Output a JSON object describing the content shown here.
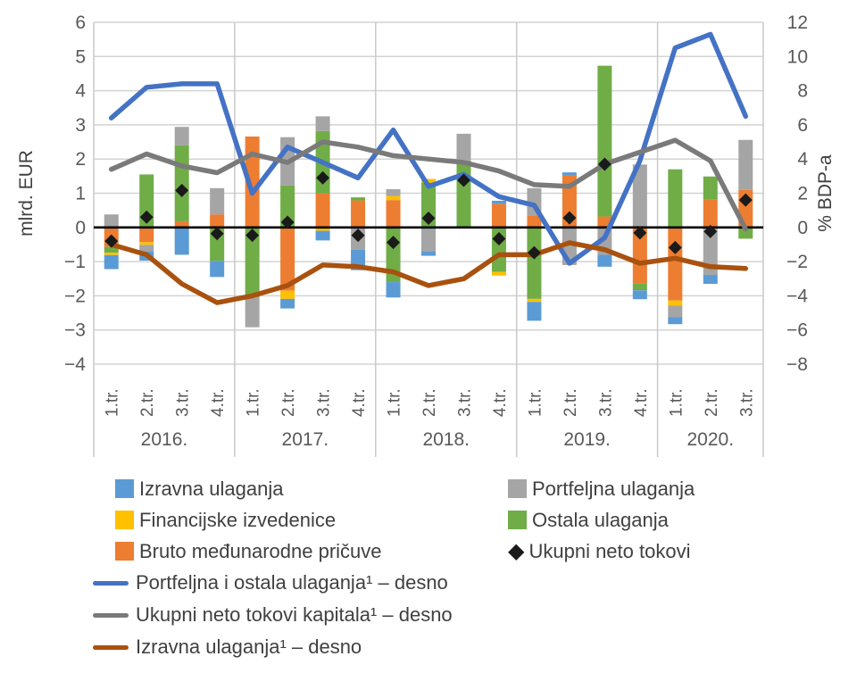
{
  "chart_data": {
    "type": "bar+line",
    "left_axis": {
      "label": "mlrd. EUR",
      "min": -4,
      "max": 6,
      "step": 1
    },
    "right_axis": {
      "label": "% BDP-a",
      "min": -8,
      "max": 12,
      "step": 2
    },
    "quarter_labels": [
      "1.tr.",
      "2.tr.",
      "3.tr.",
      "4.tr."
    ],
    "years": [
      {
        "label": "2016.",
        "quarters": 4
      },
      {
        "label": "2017.",
        "quarters": 4
      },
      {
        "label": "2018.",
        "quarters": 4
      },
      {
        "label": "2019.",
        "quarters": 4
      },
      {
        "label": "2020.",
        "quarters": 3
      }
    ],
    "series_colors": {
      "izravna": "#5B9BD5",
      "izvedenice": "#FFC000",
      "pricuve": "#ED7D31",
      "portfeljna": "#A5A5A5",
      "ostala": "#70AD47",
      "net": "#1A1A1A"
    },
    "grid_color": "#D3D3D3",
    "separator_color": "#C9C9C9",
    "zero_line_color": "#000000",
    "tick_color": "#595959",
    "axis_title_color": "#404040",
    "bars": [
      {
        "year": "2016.",
        "q": "1.tr.",
        "pos": [
          [
            "portfeljna",
            0.38
          ]
        ],
        "neg": [
          [
            "pricuve",
            0.57
          ],
          [
            "ostala",
            0.17
          ],
          [
            "izvedenice",
            0.07
          ],
          [
            "izravna",
            0.41
          ]
        ],
        "net": -0.4
      },
      {
        "year": "2016.",
        "q": "2.tr.",
        "pos": [
          [
            "ostala",
            1.55
          ]
        ],
        "neg": [
          [
            "pricuve",
            0.43
          ],
          [
            "izvedenice",
            0.08
          ],
          [
            "portfeljna",
            0.19
          ],
          [
            "izravna",
            0.27
          ]
        ],
        "net": 0.3
      },
      {
        "year": "2016.",
        "q": "3.tr.",
        "pos": [
          [
            "pricuve",
            0.18
          ],
          [
            "ostala",
            2.22
          ],
          [
            "portfeljna",
            0.54
          ]
        ],
        "neg": [
          [
            "izravna",
            0.8
          ]
        ],
        "net": 1.08
      },
      {
        "year": "2016.",
        "q": "4.tr.",
        "pos": [
          [
            "pricuve",
            0.38
          ],
          [
            "portfeljna",
            0.77
          ]
        ],
        "neg": [
          [
            "ostala",
            0.98
          ],
          [
            "izravna",
            0.47
          ]
        ],
        "net": -0.18
      },
      {
        "year": "2017.",
        "q": "1.tr.",
        "pos": [
          [
            "pricuve",
            2.66
          ]
        ],
        "neg": [
          [
            "ostala",
            2.05
          ],
          [
            "portfeljna",
            0.87
          ]
        ],
        "net": -0.23
      },
      {
        "year": "2017.",
        "q": "2.tr.",
        "pos": [
          [
            "ostala",
            1.23
          ],
          [
            "portfeljna",
            1.41
          ]
        ],
        "neg": [
          [
            "pricuve",
            1.85
          ],
          [
            "izvedenice",
            0.24
          ],
          [
            "izravna",
            0.28
          ]
        ],
        "net": 0.15
      },
      {
        "year": "2017.",
        "q": "3.tr.",
        "pos": [
          [
            "pricuve",
            0.99
          ],
          [
            "ostala",
            1.83
          ],
          [
            "portfeljna",
            0.43
          ]
        ],
        "neg": [
          [
            "izvedenice",
            0.1
          ],
          [
            "izravna",
            0.28
          ]
        ],
        "net": 1.45
      },
      {
        "year": "2017.",
        "q": "4.tr.",
        "pos": [
          [
            "pricuve",
            0.79
          ],
          [
            "ostala",
            0.09
          ]
        ],
        "neg": [
          [
            "portfeljna",
            0.65
          ],
          [
            "izravna",
            0.6
          ]
        ],
        "net": -0.23
      },
      {
        "year": "2018.",
        "q": "1.tr.",
        "pos": [
          [
            "pricuve",
            0.8
          ],
          [
            "izvedenice",
            0.12
          ],
          [
            "portfeljna",
            0.2
          ]
        ],
        "neg": [
          [
            "ostala",
            1.6
          ],
          [
            "izravna",
            0.45
          ]
        ],
        "net": -0.44
      },
      {
        "year": "2018.",
        "q": "2.tr.",
        "pos": [
          [
            "ostala",
            1.31
          ],
          [
            "izvedenice",
            0.11
          ]
        ],
        "neg": [
          [
            "portfeljna",
            0.7
          ],
          [
            "izravna",
            0.13
          ]
        ],
        "net": 0.27
      },
      {
        "year": "2018.",
        "q": "3.tr.",
        "pos": [
          [
            "ostala",
            1.96
          ],
          [
            "portfeljna",
            0.78
          ]
        ],
        "neg": [],
        "net": 1.38
      },
      {
        "year": "2018.",
        "q": "4.tr.",
        "pos": [
          [
            "pricuve",
            0.69
          ],
          [
            "izravna",
            0.09
          ]
        ],
        "neg": [
          [
            "ostala",
            1.3
          ],
          [
            "izvedenice",
            0.11
          ]
        ],
        "net": -0.33
      },
      {
        "year": "2019.",
        "q": "1.tr.",
        "pos": [
          [
            "pricuve",
            0.35
          ],
          [
            "portfeljna",
            0.8
          ]
        ],
        "neg": [
          [
            "ostala",
            2.09
          ],
          [
            "izvedenice",
            0.09
          ],
          [
            "izravna",
            0.55
          ]
        ],
        "net": -0.74
      },
      {
        "year": "2019.",
        "q": "2.tr.",
        "pos": [
          [
            "pricuve",
            1.52
          ],
          [
            "izravna",
            0.09
          ]
        ],
        "neg": [
          [
            "portfeljna",
            1.1
          ]
        ],
        "net": 0.28
      },
      {
        "year": "2019.",
        "q": "3.tr.",
        "pos": [
          [
            "pricuve",
            0.32
          ],
          [
            "ostala",
            4.41
          ]
        ],
        "neg": [
          [
            "portfeljna",
            0.8
          ],
          [
            "izravna",
            0.35
          ]
        ],
        "net": 1.85
      },
      {
        "year": "2019.",
        "q": "4.tr.",
        "pos": [
          [
            "portfeljna",
            1.84
          ]
        ],
        "neg": [
          [
            "pricuve",
            1.63
          ],
          [
            "ostala",
            0.21
          ],
          [
            "izravna",
            0.26
          ]
        ],
        "net": -0.16
      },
      {
        "year": "2020.",
        "q": "1.tr.",
        "pos": [
          [
            "ostala",
            1.7
          ]
        ],
        "neg": [
          [
            "pricuve",
            2.14
          ],
          [
            "izvedenice",
            0.15
          ],
          [
            "portfeljna",
            0.33
          ],
          [
            "izravna",
            0.21
          ]
        ],
        "net": -0.59
      },
      {
        "year": "2020.",
        "q": "2.tr.",
        "pos": [
          [
            "pricuve",
            0.81
          ],
          [
            "ostala",
            0.68
          ]
        ],
        "neg": [
          [
            "portfeljna",
            1.39
          ],
          [
            "izravna",
            0.26
          ]
        ],
        "net": -0.12
      },
      {
        "year": "2020.",
        "q": "3.tr.",
        "pos": [
          [
            "pricuve",
            1.1
          ],
          [
            "portfeljna",
            1.46
          ]
        ],
        "neg": [
          [
            "ostala",
            0.33
          ]
        ],
        "net": 0.8
      }
    ],
    "lines": [
      {
        "key": "portfolio",
        "label": "Portfeljna i ostala ulaganja¹ – desno",
        "color": "#4472C4",
        "axis": "right",
        "values": [
          6.4,
          8.2,
          8.4,
          8.4,
          2.0,
          4.7,
          3.8,
          2.9,
          5.7,
          2.4,
          3.1,
          1.8,
          1.3,
          -2.1,
          -0.6,
          3.9,
          10.5,
          11.3,
          6.5
        ]
      },
      {
        "key": "total",
        "label": "Ukupni neto tokovi kapitala¹ – desno",
        "color": "#7A7A7A",
        "axis": "right",
        "values": [
          3.4,
          4.3,
          3.6,
          3.2,
          4.3,
          3.8,
          5.0,
          4.7,
          4.2,
          4.0,
          3.8,
          3.3,
          2.5,
          2.4,
          3.7,
          4.4,
          5.1,
          3.9,
          -0.1
        ]
      },
      {
        "key": "direct",
        "label": "Izravna ulaganja¹ – desno",
        "color": "#A9510E",
        "axis": "right",
        "values": [
          -1.0,
          -1.6,
          -3.3,
          -4.4,
          -4.0,
          -3.4,
          -2.2,
          -2.3,
          -2.6,
          -3.4,
          -3.0,
          -1.6,
          -1.6,
          -0.9,
          -1.3,
          -2.1,
          -1.8,
          -2.3,
          -2.4
        ]
      }
    ]
  },
  "legend": {
    "rows": [
      [
        {
          "swatch": "square",
          "series": "izravna",
          "label": "Izravna ulaganja"
        },
        {
          "swatch": "square",
          "series": "portfeljna",
          "label": "Portfeljna ulaganja"
        }
      ],
      [
        {
          "swatch": "square",
          "series": "izvedenice",
          "label": "Financijske izvedenice"
        },
        {
          "swatch": "square",
          "series": "ostala",
          "label": "Ostala ulaganja"
        }
      ],
      [
        {
          "swatch": "square",
          "series": "pricuve",
          "label": "Bruto međunarodne pričuve"
        },
        {
          "swatch": "diamond",
          "series": "net",
          "label": "Ukupni neto tokovi"
        }
      ]
    ],
    "line_rows": [
      {
        "key": "portfolio",
        "label": "Portfeljna i ostala ulaganja¹ – desno"
      },
      {
        "key": "total",
        "label": "Ukupni neto tokovi kapitala¹ – desno"
      },
      {
        "key": "direct",
        "label": "Izravna ulaganja¹ – desno"
      }
    ],
    "diamond_glyph": "◆"
  }
}
